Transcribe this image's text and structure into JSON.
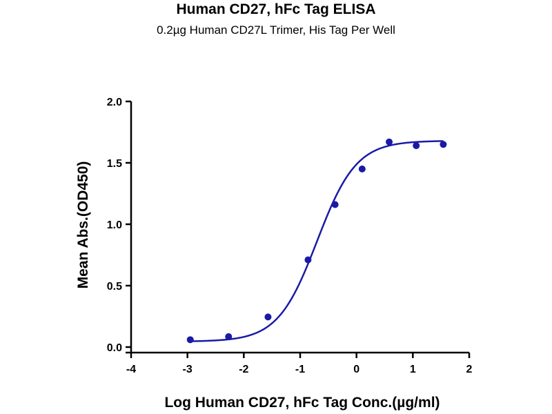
{
  "chart_data": {
    "type": "scatter",
    "title": "Human CD27, hFc Tag ELISA",
    "subtitle": "0.2µg Human CD27L Trimer, His Tag Per Well",
    "xlabel": "Log Human CD27, hFc Tag Conc.(µg/ml)",
    "ylabel": "Mean Abs.(OD450)",
    "xlim": [
      -4,
      2
    ],
    "ylim": [
      0,
      2
    ],
    "xticks": [
      -4,
      -3,
      -2,
      -1,
      0,
      1,
      2
    ],
    "yticks": [
      0.0,
      0.5,
      1.0,
      1.5,
      2.0
    ],
    "xtick_labels": [
      "-4",
      "-3",
      "-2",
      "-1",
      "0",
      "1",
      "2"
    ],
    "ytick_labels": [
      "0.0",
      "0.5",
      "1.0",
      "1.5",
      "2.0"
    ],
    "grid": false,
    "legend": "none",
    "series": [
      {
        "x": [
          -2.95,
          -2.27,
          -1.57,
          -0.86,
          -0.38,
          0.1,
          0.58,
          1.06,
          1.54
        ],
        "y": [
          0.06,
          0.085,
          0.245,
          0.71,
          1.16,
          1.45,
          1.67,
          1.64,
          1.65
        ],
        "color": "#1a1aa6"
      }
    ],
    "fit_curve": {
      "model": "4PL",
      "bottom": 0.045,
      "top": 1.68,
      "log_ec50": -0.7,
      "hill_slope": 1.25,
      "x_range": [
        -2.95,
        1.54
      ],
      "color": "#1a1aa6"
    }
  }
}
